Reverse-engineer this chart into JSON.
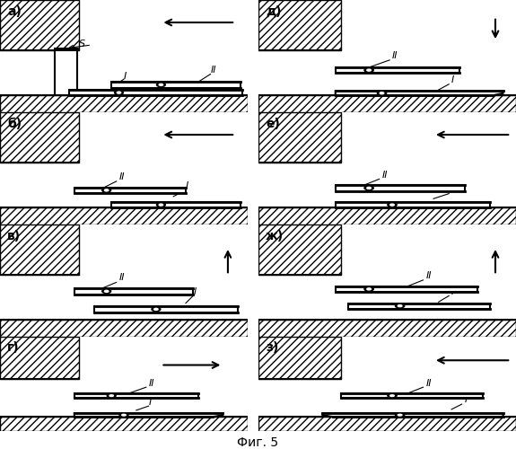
{
  "title": "Фиг. 5",
  "bg_color": "#ffffff",
  "hatch": "////",
  "panels": [
    "а)",
    "б)",
    "в)",
    "г)",
    "д)",
    "е)",
    "ж)",
    "з)"
  ]
}
